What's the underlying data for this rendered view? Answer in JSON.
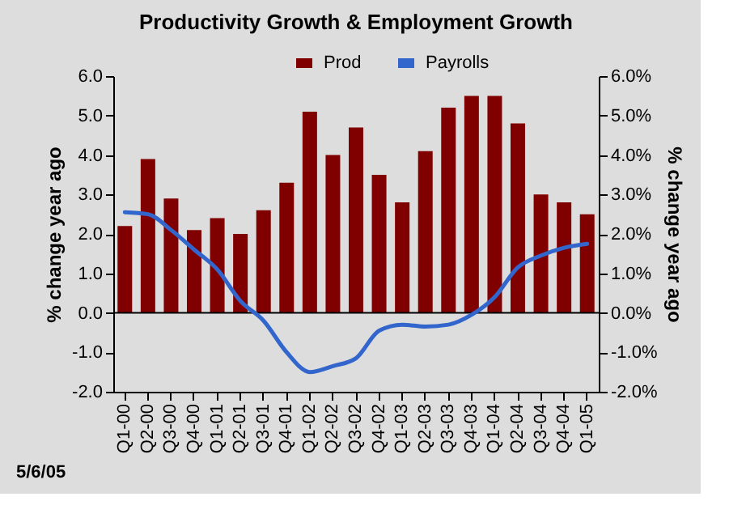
{
  "chart_data": {
    "type": "bar",
    "title": "Productivity Growth & Employment Growth",
    "categories": [
      "Q1-00",
      "Q2-00",
      "Q3-00",
      "Q4-00",
      "Q1-01",
      "Q2-01",
      "Q3-01",
      "Q4-01",
      "Q1-02",
      "Q2-02",
      "Q3-02",
      "Q4-02",
      "Q1-03",
      "Q2-03",
      "Q3-03",
      "Q4-03",
      "Q1-04",
      "Q2-04",
      "Q3-04",
      "Q4-04",
      "Q1-05"
    ],
    "series": [
      {
        "name": "Prod",
        "color": "#800000",
        "values": [
          2.2,
          3.9,
          2.9,
          2.1,
          2.4,
          2.0,
          2.6,
          3.3,
          5.1,
          4.0,
          4.7,
          3.5,
          2.8,
          4.1,
          5.2,
          5.5,
          5.5,
          4.8,
          3.0,
          2.8,
          2.5
        ]
      },
      {
        "name": "Payrolls",
        "type": "line",
        "axis": "y2",
        "color": "#3366cc",
        "values": [
          2.55,
          2.5,
          2.1,
          1.6,
          1.1,
          0.3,
          -0.2,
          -1.0,
          -1.5,
          -1.35,
          -1.15,
          -0.45,
          -0.3,
          -0.35,
          -0.3,
          -0.05,
          0.4,
          1.15,
          1.45,
          1.65,
          1.75
        ]
      }
    ],
    "ylabel": "% change year ago",
    "y2label": "% change year ago",
    "ylim": [
      -2,
      6
    ],
    "yticks": [
      {
        "value": -2,
        "label": "-2.0"
      },
      {
        "value": -1,
        "label": "-1.0"
      },
      {
        "value": 0,
        "label": "0.0"
      },
      {
        "value": 1,
        "label": "1.0"
      },
      {
        "value": 2,
        "label": "2.0"
      },
      {
        "value": 3,
        "label": "3.0"
      },
      {
        "value": 4,
        "label": "4.0"
      },
      {
        "value": 5,
        "label": "5.0"
      },
      {
        "value": 6,
        "label": "6.0"
      }
    ],
    "y2lim": [
      -2,
      6
    ],
    "y2ticks": [
      {
        "value": -2,
        "label": "-2.0%"
      },
      {
        "value": -1,
        "label": "-1.0%"
      },
      {
        "value": 0,
        "label": "0.0%"
      },
      {
        "value": 1,
        "label": "1.0%"
      },
      {
        "value": 2,
        "label": "2.0%"
      },
      {
        "value": 3,
        "label": "3.0%"
      },
      {
        "value": 4,
        "label": "4.0%"
      },
      {
        "value": 5,
        "label": "5.0%"
      },
      {
        "value": 6,
        "label": "6.0%"
      }
    ],
    "ref_lines": [
      {
        "axis": "y",
        "value": 0,
        "color": "#000000"
      }
    ],
    "legend": "top",
    "line_style": "solid",
    "annotations": [
      "5/6/05"
    ]
  }
}
